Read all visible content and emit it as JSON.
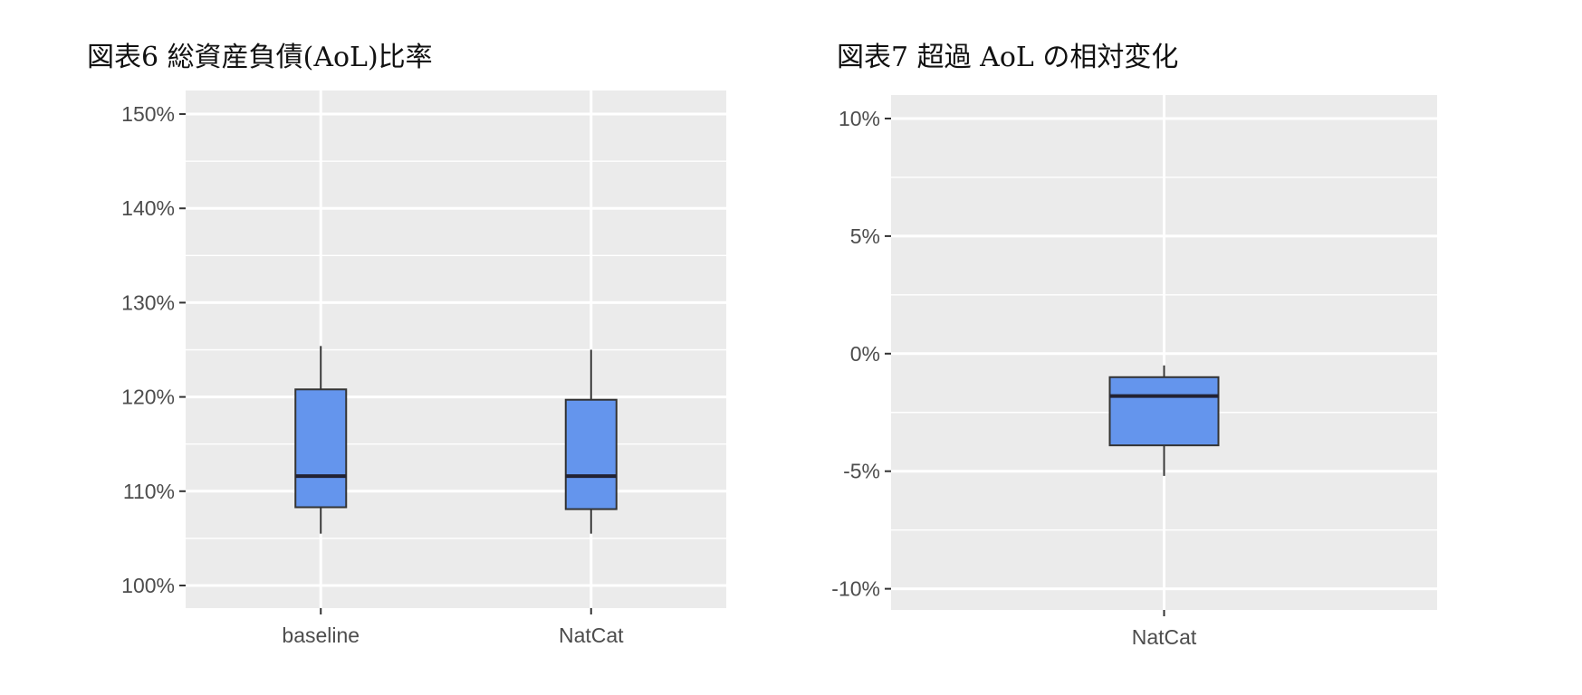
{
  "chart_data": [
    {
      "type": "box",
      "title": "図表6 総資産負債(AoL)比率",
      "categories": [
        "baseline",
        "NatCat"
      ],
      "boxes": [
        {
          "category": "baseline",
          "whisker_low": 105.5,
          "q1": 108.3,
          "median": 111.6,
          "q3": 120.8,
          "whisker_high": 125.4
        },
        {
          "category": "NatCat",
          "whisker_low": 105.5,
          "q1": 108.1,
          "median": 111.6,
          "q3": 119.7,
          "whisker_high": 125.0
        }
      ],
      "ylim": [
        97.6,
        152.5
      ],
      "yticks": [
        100,
        110,
        120,
        130,
        140,
        150
      ],
      "ytick_labels": [
        "100%",
        "110%",
        "120%",
        "130%",
        "140%",
        "150%"
      ],
      "xlabel": "",
      "ylabel": "",
      "grid": true,
      "box_color": "#6495ed",
      "panel_color": "#ebebeb"
    },
    {
      "type": "box",
      "title": "図表7 超過 AoL の相対変化",
      "categories": [
        "NatCat"
      ],
      "boxes": [
        {
          "category": "NatCat",
          "whisker_low": -5.2,
          "q1": -3.9,
          "median": -1.8,
          "q3": -1.0,
          "whisker_high": -0.5
        }
      ],
      "ylim": [
        -10.9,
        11.0
      ],
      "yticks": [
        -10,
        -5,
        0,
        5,
        10
      ],
      "ytick_labels": [
        "-10%",
        "-5%",
        "0%",
        "5%",
        "10%"
      ],
      "xlabel": "",
      "ylabel": "",
      "grid": true,
      "box_color": "#6495ed",
      "panel_color": "#ebebeb"
    }
  ]
}
